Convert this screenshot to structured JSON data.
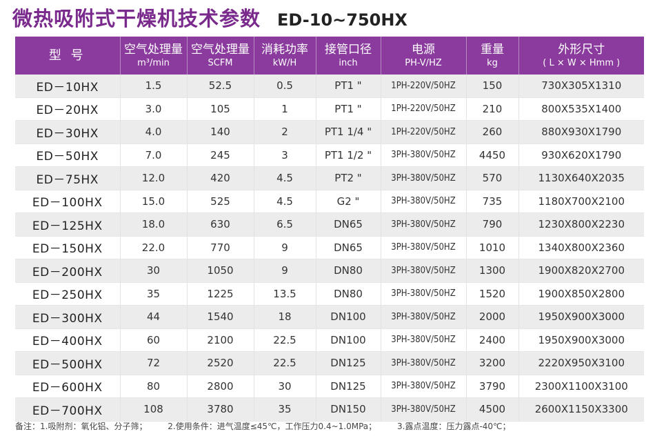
{
  "title": {
    "cn": "微热吸附式干燥机技术参数",
    "model": "ED-10~750HX"
  },
  "table": {
    "headers": [
      {
        "cn": "型 号",
        "unit": ""
      },
      {
        "cn": "空气处理量",
        "unit": "m³/min"
      },
      {
        "cn": "空气处理量",
        "unit": "SCFM"
      },
      {
        "cn": "消耗功率",
        "unit": "kW/H"
      },
      {
        "cn": "接管口径",
        "unit": "inch"
      },
      {
        "cn": "电源",
        "unit": "PH-V/HZ"
      },
      {
        "cn": "重量",
        "unit": "kg"
      },
      {
        "cn": "外形尺寸",
        "unit": "( L × W × Hmm )"
      }
    ],
    "rows": [
      [
        "ED－10HX",
        "1.5",
        "52.5",
        "0.5",
        "PT1 \"",
        "1PH-220V/50HZ",
        "150",
        "730X305X1310"
      ],
      [
        "ED－20HX",
        "3.0",
        "105",
        "1",
        "PT1 \"",
        "1PH-220V/50HZ",
        "210",
        "800X535X1400"
      ],
      [
        "ED－30HX",
        "4.0",
        "140",
        "2",
        "PT1 1/4 \"",
        "1PH-220V/50HZ",
        "260",
        "880X930X1790"
      ],
      [
        "ED－50HX",
        "7.0",
        "245",
        "3",
        "PT1 1/2 \"",
        "3PH-380V/50HZ",
        "4450",
        "930X620X1790"
      ],
      [
        "ED－75HX",
        "12.0",
        "420",
        "4.5",
        "PT2 \"",
        "3PH-380V/50HZ",
        "570",
        "1130X640X2035"
      ],
      [
        "ED－100HX",
        "15.0",
        "525",
        "4.5",
        "G2 \"",
        "3PH-380V/50HZ",
        "735",
        "1180X700X2100"
      ],
      [
        "ED－125HX",
        "18.0",
        "630",
        "6.5",
        "DN65",
        "3PH-380V/50HZ",
        "790",
        "1230X800X2230"
      ],
      [
        "ED－150HX",
        "22.0",
        "770",
        "9",
        "DN65",
        "3PH-380V/50HZ",
        "1010",
        "1340X800X2360"
      ],
      [
        "ED－200HX",
        "30",
        "1050",
        "9",
        "DN80",
        "3PH-380V/50HZ",
        "1300",
        "1900X820X2700"
      ],
      [
        "ED－250HX",
        "35",
        "1225",
        "13.5",
        "DN80",
        "3PH-380V/50HZ",
        "1520",
        "1900X850X2800"
      ],
      [
        "ED－300HX",
        "44",
        "1540",
        "18",
        "DN100",
        "3PH-380V/50HZ",
        "2000",
        "1950X900X3000"
      ],
      [
        "ED－400HX",
        "60",
        "2100",
        "22.5",
        "DN100",
        "3PH-380V/50HZ",
        "2400",
        "1950X900X3000"
      ],
      [
        "ED－500HX",
        "72",
        "2520",
        "22.5",
        "DN125",
        "3PH-380V/50HZ",
        "3200",
        "2220X950X3100"
      ],
      [
        "ED－600HX",
        "80",
        "2800",
        "30",
        "DN125",
        "3PH-380V/50HZ",
        "3790",
        "2300X1100X3100"
      ],
      [
        "ED－700HX",
        "108",
        "3780",
        "35",
        "DN150",
        "3PH-380V/50HZ",
        "4500",
        "2600X1150X3300"
      ]
    ]
  },
  "notes": [
    "备注：1.吸附剂：氧化铝、分子筛；",
    "2.使用条件：进气温度≤45℃，工作压力0.4~1.0MPa；",
    "3.露点温度：压力露点-40℃；"
  ]
}
